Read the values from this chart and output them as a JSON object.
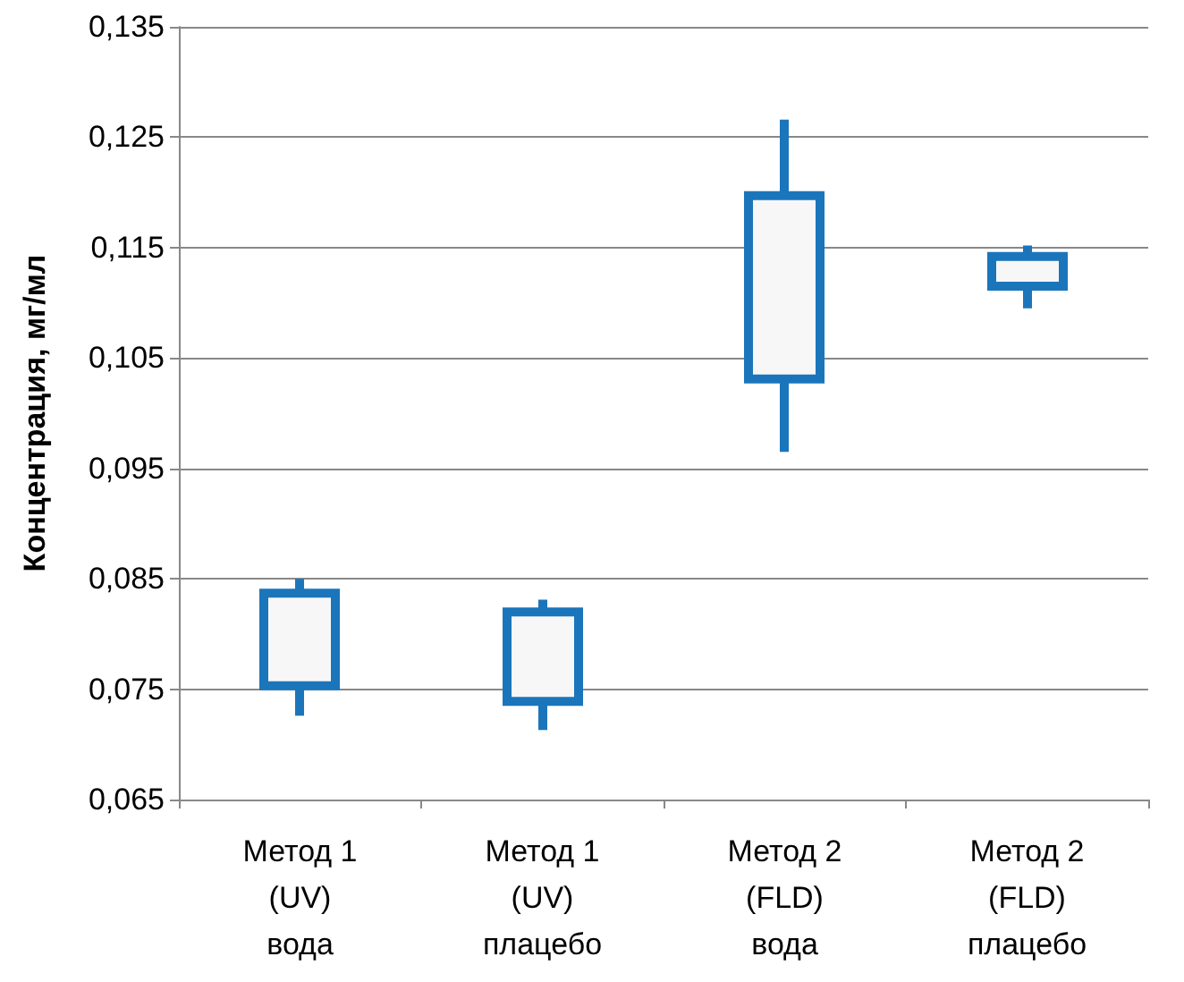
{
  "chart_data": {
    "type": "candlestick",
    "ylabel": "Концентрация, мг/мл",
    "categories": [
      "Метод 1\n(UV)\nвода",
      "Метод 1\n(UV)\nплацебо",
      "Метод 2\n(FLD)\nвода",
      "Метод 2\n(FLD)\nплацебо"
    ],
    "ohlc": [
      [
        0.0753,
        0.085,
        0.0726,
        0.0837
      ],
      [
        0.0739,
        0.0831,
        0.0713,
        0.082
      ],
      [
        0.1031,
        0.1266,
        0.0965,
        0.1197
      ],
      [
        0.1115,
        0.1152,
        0.1095,
        0.1142
      ]
    ],
    "color": "#1b75bb",
    "ylim": [
      0.065,
      0.135
    ],
    "yticks": [
      {
        "value": 0.065,
        "label": "0,065"
      },
      {
        "value": 0.075,
        "label": "0,075"
      },
      {
        "value": 0.085,
        "label": "0,085"
      },
      {
        "value": 0.095,
        "label": "0,095"
      },
      {
        "value": 0.105,
        "label": "0,105"
      },
      {
        "value": 0.115,
        "label": "0,115"
      },
      {
        "value": 0.125,
        "label": "0,125"
      },
      {
        "value": 0.135,
        "label": "0,135"
      }
    ],
    "grid": "y"
  }
}
